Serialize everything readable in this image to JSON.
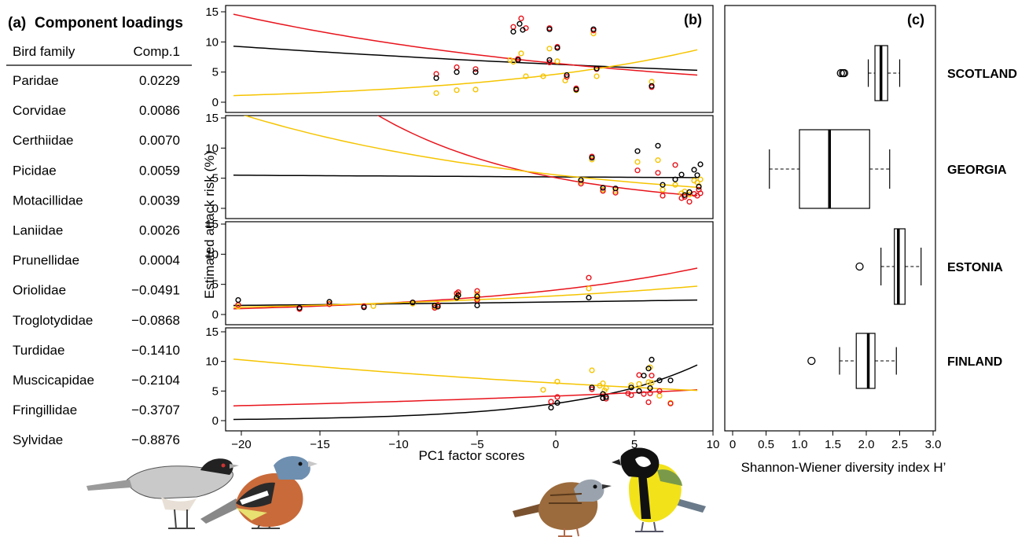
{
  "chart_data": [
    {
      "type": "table",
      "panel_label": "(a)",
      "title": "Component loadings",
      "columns": [
        "Bird family",
        "Comp.1"
      ],
      "rows": [
        [
          "Paridae",
          "0.0229"
        ],
        [
          "Corvidae",
          "0.0086"
        ],
        [
          "Certhiidae",
          "0.0070"
        ],
        [
          "Picidae",
          "0.0059"
        ],
        [
          "Motacillidae",
          "0.0039"
        ],
        [
          "Laniidae",
          "0.0026"
        ],
        [
          "Prunellidae",
          "0.0004"
        ],
        [
          "Oriolidae",
          "−0.0491"
        ],
        [
          "Troglotydidae",
          "−0.0868"
        ],
        [
          "Turdidae",
          "−0.1410"
        ],
        [
          "Muscicapidae",
          "−0.2104"
        ],
        [
          "Fringillidae",
          "−0.3707"
        ],
        [
          "Sylvidae",
          "−0.8876"
        ]
      ]
    },
    {
      "type": "scatter",
      "panel_label": "(b)",
      "xlabel": "PC1 factor scores",
      "ylabel": "Estimated attack risk (%)",
      "xlim": [
        -21,
        10
      ],
      "ylim": [
        0,
        15
      ],
      "xticks": [
        -20,
        -15,
        -10,
        -5,
        0,
        5,
        10
      ],
      "yticks": [
        0,
        5,
        10,
        15
      ],
      "colors": {
        "black": "#000000",
        "red": "#e8141c",
        "yellow": "#f5c400"
      },
      "subpanels": [
        {
          "name": "SCOTLAND",
          "lines": {
            "black": [
              9.3,
              5.3
            ],
            "red": [
              14.6,
              4.5
            ],
            "yellow": [
              1.1,
              8.7
            ]
          },
          "points": {
            "black": [
              [
                -7.6,
                4.0
              ],
              [
                -6.3,
                5.0
              ],
              [
                -5.1,
                5.0
              ],
              [
                -2.7,
                11.7
              ],
              [
                -2.3,
                13.0
              ],
              [
                -2.1,
                12.0
              ],
              [
                -2.4,
                7.0
              ],
              [
                -0.4,
                12.1
              ],
              [
                0.1,
                9.0
              ],
              [
                1.3,
                2.1
              ],
              [
                2.4,
                12.1
              ],
              [
                2.6,
                5.6
              ],
              [
                6.1,
                2.7
              ],
              [
                -0.4,
                7.0
              ],
              [
                0.7,
                4.5
              ]
            ],
            "red": [
              [
                -7.6,
                4.7
              ],
              [
                -6.3,
                5.8
              ],
              [
                -5.1,
                5.5
              ],
              [
                -2.7,
                12.5
              ],
              [
                -2.2,
                13.9
              ],
              [
                -1.9,
                12.3
              ],
              [
                -2.4,
                7.2
              ],
              [
                -0.4,
                12.3
              ],
              [
                0.1,
                9.2
              ],
              [
                1.3,
                2.3
              ],
              [
                2.4,
                11.9
              ],
              [
                2.6,
                5.5
              ],
              [
                6.1,
                2.5
              ],
              [
                -0.4,
                6.6
              ],
              [
                0.7,
                4.2
              ]
            ],
            "yellow": [
              [
                -7.6,
                1.5
              ],
              [
                -6.3,
                2.0
              ],
              [
                -5.1,
                2.1
              ],
              [
                -2.7,
                6.7
              ],
              [
                -2.2,
                8.1
              ],
              [
                -1.9,
                4.3
              ],
              [
                -0.8,
                4.3
              ],
              [
                -0.4,
                8.9
              ],
              [
                0.1,
                6.8
              ],
              [
                0.6,
                3.6
              ],
              [
                1.3,
                2.0
              ],
              [
                2.4,
                11.4
              ],
              [
                2.6,
                4.3
              ],
              [
                6.1,
                3.4
              ],
              [
                -2.9,
                7.0
              ]
            ]
          }
        },
        {
          "name": "GEORGIA",
          "lines": {
            "black": [
              5.5,
              5.1
            ],
            "red": [
              38.0,
              2.1
            ],
            "yellow": [
              16.0,
              3.5
            ]
          },
          "points": {
            "black": [
              [
                1.6,
                4.7
              ],
              [
                2.3,
                8.4
              ],
              [
                3.0,
                3.4
              ],
              [
                3.8,
                3.3
              ],
              [
                5.2,
                9.5
              ],
              [
                6.5,
                10.4
              ],
              [
                6.8,
                3.9
              ],
              [
                7.6,
                4.8
              ],
              [
                8.0,
                5.6
              ],
              [
                8.5,
                2.7
              ],
              [
                8.8,
                6.4
              ],
              [
                9.0,
                5.5
              ],
              [
                9.2,
                7.3
              ],
              [
                9.1,
                3.6
              ],
              [
                8.2,
                2.2
              ]
            ],
            "red": [
              [
                1.6,
                4.1
              ],
              [
                2.3,
                8.6
              ],
              [
                3.0,
                2.9
              ],
              [
                3.8,
                2.6
              ],
              [
                5.2,
                6.3
              ],
              [
                6.5,
                5.9
              ],
              [
                6.8,
                2.1
              ],
              [
                7.6,
                7.2
              ],
              [
                8.0,
                1.7
              ],
              [
                8.5,
                1.1
              ],
              [
                8.8,
                2.4
              ],
              [
                9.0,
                2.1
              ],
              [
                9.2,
                2.5
              ],
              [
                9.1,
                3.1
              ],
              [
                8.2,
                1.9
              ]
            ],
            "yellow": [
              [
                1.6,
                4.4
              ],
              [
                2.3,
                8.1
              ],
              [
                3.0,
                3.1
              ],
              [
                3.8,
                2.9
              ],
              [
                5.2,
                7.7
              ],
              [
                6.5,
                8.0
              ],
              [
                6.8,
                3.1
              ],
              [
                7.6,
                3.9
              ],
              [
                8.0,
                2.5
              ],
              [
                8.5,
                2.3
              ],
              [
                8.8,
                4.6
              ],
              [
                9.0,
                4.3
              ],
              [
                9.2,
                4.8
              ],
              [
                9.1,
                3.7
              ],
              [
                8.2,
                2.8
              ]
            ]
          }
        },
        {
          "name": "ESTONIA",
          "lines": {
            "black": [
              1.5,
              2.4
            ],
            "red": [
              0.95,
              7.7
            ],
            "yellow": [
              1.2,
              4.7
            ]
          },
          "points": {
            "black": [
              [
                -20.2,
                2.4
              ],
              [
                -16.3,
                1.1
              ],
              [
                -14.4,
                2.1
              ],
              [
                -12.2,
                1.2
              ],
              [
                -9.1,
                2.0
              ],
              [
                -7.7,
                1.5
              ],
              [
                -6.3,
                2.8
              ],
              [
                -5.0,
                1.5
              ],
              [
                -6.2,
                3.2
              ],
              [
                2.1,
                2.8
              ],
              [
                -7.5,
                1.3
              ],
              [
                -5.0,
                3.0
              ]
            ],
            "red": [
              [
                -20.2,
                1.6
              ],
              [
                -16.3,
                0.9
              ],
              [
                -14.4,
                1.7
              ],
              [
                -12.2,
                1.4
              ],
              [
                -9.1,
                2.0
              ],
              [
                -7.7,
                1.1
              ],
              [
                -6.3,
                3.5
              ],
              [
                -5.0,
                3.9
              ],
              [
                -6.2,
                3.7
              ],
              [
                2.1,
                6.1
              ],
              [
                -7.5,
                1.6
              ],
              [
                -5.0,
                2.4
              ]
            ],
            "yellow": [
              [
                -20.2,
                1.3
              ],
              [
                -16.3,
                1.0
              ],
              [
                -14.4,
                1.8
              ],
              [
                -11.6,
                1.4
              ],
              [
                -9.1,
                1.8
              ],
              [
                -7.7,
                1.3
              ],
              [
                -6.3,
                3.0
              ],
              [
                -5.0,
                3.4
              ],
              [
                -6.2,
                3.3
              ],
              [
                2.1,
                4.3
              ],
              [
                -7.5,
                1.4
              ],
              [
                -5.0,
                2.6
              ]
            ]
          }
        },
        {
          "name": "FINLAND",
          "lines": {
            "black": [
              0.2,
              9.4
            ],
            "red": [
              2.5,
              5.2
            ],
            "yellow": [
              10.4,
              5.1
            ]
          },
          "points": {
            "black": [
              [
                -0.3,
                2.2
              ],
              [
                0.1,
                3.0
              ],
              [
                2.3,
                5.6
              ],
              [
                3.0,
                4.5
              ],
              [
                3.2,
                4.0
              ],
              [
                4.8,
                5.6
              ],
              [
                5.3,
                5.0
              ],
              [
                5.9,
                8.8
              ],
              [
                6.0,
                5.5
              ],
              [
                6.1,
                10.3
              ],
              [
                6.6,
                6.8
              ],
              [
                7.3,
                6.8
              ],
              [
                5.6,
                7.6
              ],
              [
                3.0,
                3.8
              ]
            ],
            "red": [
              [
                -0.3,
                3.2
              ],
              [
                0.1,
                4.0
              ],
              [
                2.3,
                5.3
              ],
              [
                3.0,
                3.8
              ],
              [
                3.2,
                3.7
              ],
              [
                4.8,
                4.3
              ],
              [
                5.3,
                7.7
              ],
              [
                5.9,
                3.1
              ],
              [
                6.0,
                4.6
              ],
              [
                6.1,
                7.6
              ],
              [
                6.6,
                5.0
              ],
              [
                7.3,
                2.9
              ],
              [
                5.6,
                4.5
              ],
              [
                4.6,
                4.6
              ]
            ],
            "yellow": [
              [
                -0.8,
                5.2
              ],
              [
                0.1,
                6.6
              ],
              [
                2.3,
                8.5
              ],
              [
                3.0,
                6.3
              ],
              [
                3.2,
                5.5
              ],
              [
                4.8,
                6.0
              ],
              [
                5.3,
                6.2
              ],
              [
                5.9,
                6.5
              ],
              [
                6.0,
                9.0
              ],
              [
                6.1,
                6.4
              ],
              [
                6.6,
                4.2
              ],
              [
                7.3,
                3.0
              ],
              [
                2.8,
                5.9
              ],
              [
                3.1,
                5.1
              ]
            ]
          }
        }
      ]
    },
    {
      "type": "box",
      "panel_label": "(c)",
      "xlabel": "Shannon-Wiener diversity index H’",
      "xlim": [
        -0.1,
        3.1
      ],
      "xticks": [
        "0",
        "0.5",
        "1.0",
        "1.5",
        "2.0",
        "2.5",
        "3.0"
      ],
      "xtick_values": [
        0,
        0.5,
        1.0,
        1.5,
        2.0,
        2.5,
        3.0
      ],
      "groups": [
        {
          "name": "SCOTLAND",
          "whisker_low": 2.03,
          "q1": 2.13,
          "median": 2.22,
          "q3": 2.32,
          "whisker_high": 2.5,
          "outliers": [
            1.62,
            1.65,
            1.67
          ]
        },
        {
          "name": "GEORGIA",
          "whisker_low": 0.55,
          "q1": 1.0,
          "median": 1.45,
          "q3": 2.05,
          "whisker_high": 2.35,
          "outliers": []
        },
        {
          "name": "ESTONIA",
          "whisker_low": 2.22,
          "q1": 2.42,
          "median": 2.48,
          "q3": 2.58,
          "whisker_high": 2.82,
          "outliers": [
            1.9
          ]
        },
        {
          "name": "FINLAND",
          "whisker_low": 1.6,
          "q1": 1.85,
          "median": 2.03,
          "q3": 2.13,
          "whisker_high": 2.45,
          "outliers": [
            1.18
          ]
        }
      ]
    }
  ]
}
